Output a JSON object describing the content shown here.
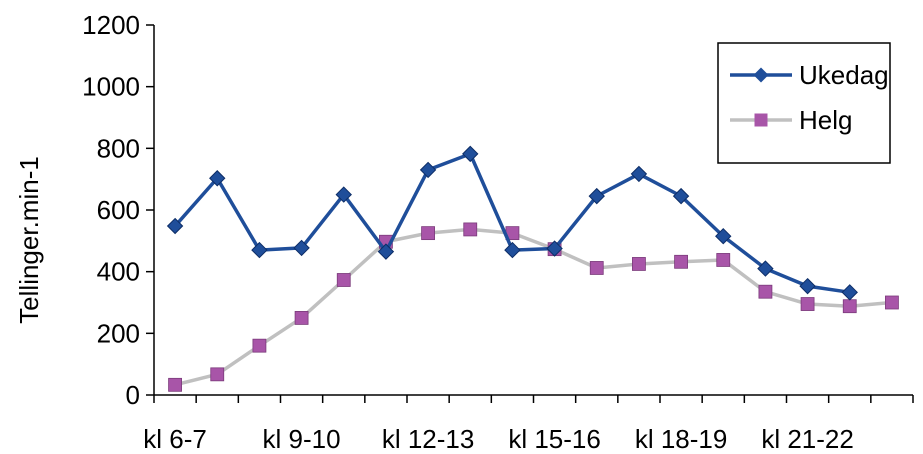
{
  "chart_data": {
    "type": "line",
    "title": "",
    "xlabel": "",
    "ylabel": "Tellinger.min-1",
    "ylim": [
      0,
      1200
    ],
    "yticks": [
      0,
      200,
      400,
      600,
      800,
      1000,
      1200
    ],
    "categories": [
      "kl 6-7",
      "",
      "",
      "kl 9-10",
      "",
      "",
      "kl 12-13",
      "",
      "",
      "kl 15-16",
      "",
      "",
      "kl 18-19",
      "",
      "",
      "kl 21-22",
      "",
      ""
    ],
    "grid": false,
    "legend": "top-right",
    "series": [
      {
        "name": "Ukedag",
        "color": "#1f4e9a",
        "marker": "diamond",
        "values": [
          548,
          703,
          470,
          477,
          650,
          465,
          730,
          782,
          470,
          475,
          645,
          717,
          645,
          515,
          410,
          353,
          333,
          null
        ]
      },
      {
        "name": "Helg",
        "color": "#c0c0c0",
        "marker_color": "#a855a8",
        "marker": "square",
        "values": [
          33,
          67,
          160,
          250,
          373,
          497,
          525,
          537,
          525,
          473,
          412,
          425,
          432,
          438,
          335,
          295,
          288,
          300
        ]
      }
    ]
  }
}
